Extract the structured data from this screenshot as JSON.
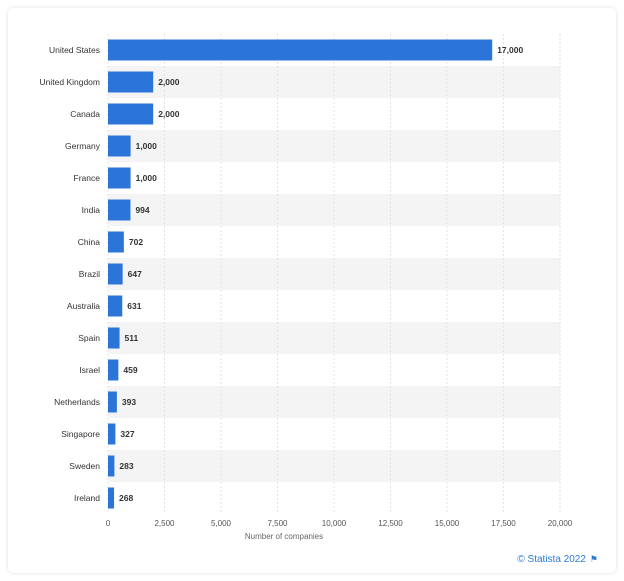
{
  "chart_data": {
    "type": "bar",
    "orientation": "horizontal",
    "categories": [
      "United States",
      "United Kingdom",
      "Canada",
      "Germany",
      "France",
      "India",
      "China",
      "Brazil",
      "Australia",
      "Spain",
      "Israel",
      "Netherlands",
      "Singapore",
      "Sweden",
      "Ireland"
    ],
    "values": [
      17000,
      2000,
      2000,
      1000,
      1000,
      994,
      702,
      647,
      631,
      511,
      459,
      393,
      327,
      283,
      268
    ],
    "value_labels": [
      "17,000",
      "2,000",
      "2,000",
      "1,000",
      "1,000",
      "994",
      "702",
      "647",
      "631",
      "511",
      "459",
      "393",
      "327",
      "283",
      "268"
    ],
    "xlabel": "Number of companies",
    "ylabel": "",
    "xlim": [
      0,
      20000
    ],
    "xticks": [
      0,
      2500,
      5000,
      7500,
      10000,
      12500,
      15000,
      17500,
      20000
    ],
    "xtick_labels": [
      "0",
      "2,500",
      "5,000",
      "7,500",
      "10,000",
      "12,500",
      "15,000",
      "17,500",
      "20,000"
    ],
    "grid": true,
    "legend": "none",
    "bar_color": "#2b75d9",
    "stripe_color": "#f4f4f4"
  },
  "credit": {
    "text": "© Statista 2022",
    "flag_icon": "flag-icon"
  }
}
